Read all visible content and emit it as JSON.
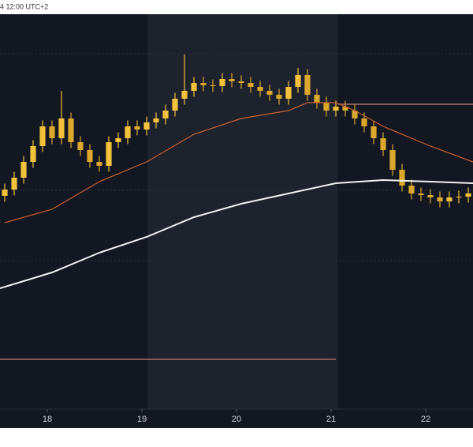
{
  "chart_data": {
    "type": "candlestick",
    "title": "4 12:00 UTC+2",
    "xlim": [
      -0.5,
      49.5
    ],
    "ylim": [
      0,
      100
    ],
    "xticks": [
      {
        "value": 4.5,
        "label": "18"
      },
      {
        "value": 14.5,
        "label": "19"
      },
      {
        "value": 24.5,
        "label": "20"
      },
      {
        "value": 34.5,
        "label": "21"
      },
      {
        "value": 44.5,
        "label": "22"
      }
    ],
    "shaded_range": [
      15.1,
      35.2
    ],
    "up_color": "#f2c23c",
    "down_color": "#d9a82c",
    "open": [
      54.0,
      55.6,
      58.6,
      62.6,
      66.6,
      71.6,
      68.6,
      73.6,
      67.6,
      65.6,
      62.6,
      61.6,
      67.6,
      68.6,
      71.6,
      70.8,
      72.6,
      73.6,
      75.6,
      78.6,
      80.6,
      82.6,
      82.0,
      81.8,
      83.6,
      83.0,
      82.6,
      81.6,
      80.6,
      79.6,
      78.6,
      81.6,
      84.6,
      79.6,
      77.6,
      75.6,
      76.6,
      75.6,
      73.6,
      71.6,
      68.6,
      65.6,
      60.6,
      56.6,
      54.6,
      54.2,
      53.6,
      52.6,
      53.6,
      53.8
    ],
    "high": [
      57.1,
      60.1,
      64.1,
      68.1,
      73.1,
      73.1,
      80.6,
      75.1,
      69.1,
      67.1,
      64.1,
      69.1,
      70.1,
      73.1,
      73.1,
      74.1,
      75.1,
      77.1,
      80.1,
      89.8,
      84.1,
      84.1,
      83.5,
      85.1,
      85.1,
      84.5,
      84.1,
      83.1,
      82.1,
      81.1,
      83.1,
      86.4,
      86.1,
      81.1,
      79.1,
      78.1,
      78.1,
      77.1,
      75.1,
      73.1,
      70.1,
      67.1,
      62.1,
      58.1,
      56.1,
      55.7,
      55.1,
      55.1,
      55.3,
      56.1
    ],
    "low": [
      52.5,
      54.1,
      57.1,
      61.1,
      65.1,
      67.1,
      67.1,
      66.1,
      64.1,
      61.1,
      60.1,
      60.1,
      66.1,
      67.1,
      69.3,
      69.3,
      71.1,
      72.1,
      74.1,
      77.1,
      79.1,
      80.5,
      80.3,
      80.3,
      81.5,
      81.1,
      80.1,
      79.1,
      78.1,
      77.1,
      77.1,
      80.1,
      78.1,
      76.1,
      74.1,
      74.1,
      74.1,
      72.1,
      70.1,
      67.1,
      64.1,
      59.1,
      55.1,
      53.1,
      52.7,
      52.1,
      51.1,
      51.1,
      52.1,
      52.3
    ],
    "close": [
      55.6,
      58.6,
      62.6,
      66.6,
      71.6,
      68.6,
      73.6,
      67.6,
      65.6,
      62.6,
      61.6,
      67.6,
      68.6,
      71.6,
      70.8,
      72.6,
      73.6,
      75.6,
      78.6,
      80.6,
      82.6,
      82.0,
      81.8,
      83.6,
      83.0,
      82.6,
      81.6,
      80.6,
      79.6,
      78.6,
      81.6,
      84.6,
      79.6,
      77.6,
      75.6,
      76.6,
      75.6,
      73.6,
      71.6,
      68.6,
      65.6,
      60.6,
      56.6,
      54.6,
      54.2,
      53.6,
      52.6,
      53.6,
      53.8,
      54.6
    ],
    "lines": [
      {
        "color": "#c8612f",
        "x": [
          0,
          5,
          10,
          15,
          20,
          25,
          30,
          32,
          35,
          37,
          40,
          45,
          49.5
        ],
        "values": [
          47.2,
          50.6,
          57.6,
          62.6,
          69.6,
          73.6,
          75.6,
          77.6,
          77.6,
          75.6,
          71.6,
          66.6,
          62.6
        ]
      },
      {
        "color": "#f2f2f2",
        "x": [
          -0.5,
          5,
          10,
          15,
          20,
          25,
          30,
          35,
          40,
          45,
          49.5
        ],
        "values": [
          30.6,
          34.6,
          39.6,
          43.6,
          48.6,
          52.0,
          54.6,
          57.2,
          58.0,
          57.6,
          57.2
        ]
      }
    ],
    "hlines": [
      {
        "value": 77.2,
        "x": [
          35.2,
          49.5
        ],
        "color": "#a86f6a"
      },
      {
        "value": 12.6,
        "x": [
          -0.5,
          35
        ],
        "color": "#a86f6a"
      }
    ]
  }
}
